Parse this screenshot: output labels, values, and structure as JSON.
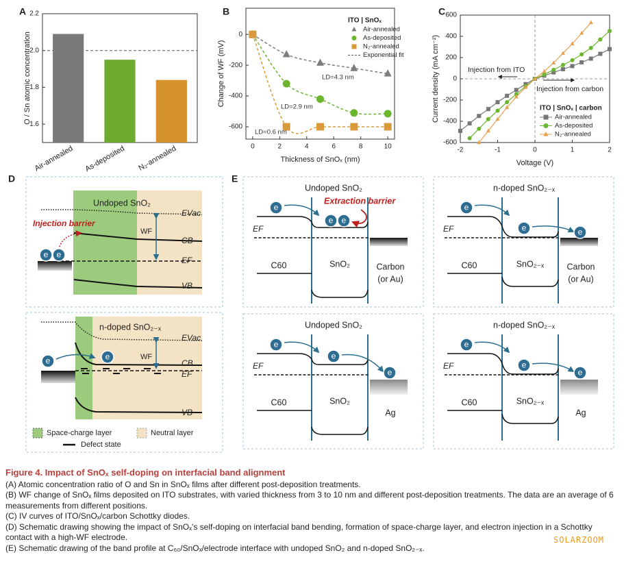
{
  "chart_data": [
    {
      "type": "bar",
      "label": "A",
      "ylabel": "O / Sn atomic concentration",
      "categories": [
        "Air-annealed",
        "As-deposited",
        "N₂-annealed"
      ],
      "values": [
        2.09,
        1.95,
        1.84
      ],
      "colors": [
        "#7a7a7a",
        "#6cab2e",
        "#d6922c"
      ],
      "reference_line": 2.0,
      "ylim": [
        1.5,
        2.2
      ],
      "yticks": [
        1.6,
        1.8,
        {
          "value": 2,
          "label": "2.0"
        },
        2.2
      ]
    },
    {
      "type": "line",
      "label": "B",
      "xlabel": "Thickness of SnOₓ (nm)",
      "ylabel": "Change of WF (mV)",
      "x": [
        0,
        2.5,
        5,
        7.5,
        10
      ],
      "series": [
        {
          "name": "Air-annealed",
          "color": "#7d7d7d",
          "marker": "triangle",
          "values": [
            0,
            -130,
            -185,
            -220,
            -255
          ]
        },
        {
          "name": "As-deposited",
          "color": "#6cb52f",
          "marker": "circle",
          "values": [
            0,
            -320,
            -420,
            -510,
            -515
          ]
        },
        {
          "name": "N₂-annealed",
          "color": "#d99a3c",
          "marker": "square",
          "values": [
            0,
            -600,
            -600,
            -600,
            -600
          ]
        }
      ],
      "legend_title": "ITO | SnOₓ",
      "fit_label": "Exponential fit",
      "line_style": "dashed",
      "legend": "upper right",
      "annotations": [
        "LD=4.3 nm",
        "LD=2.9 nm",
        "LD=0.6 nm"
      ],
      "xlim": [
        -0.5,
        10.5
      ],
      "xticks": [
        0,
        2,
        4,
        6,
        8,
        10
      ],
      "ylim": [
        -680,
        170
      ],
      "yticks": [
        -600,
        -400,
        -200,
        0
      ]
    },
    {
      "type": "line",
      "label": "C",
      "xlabel": "Voltage (V)",
      "ylabel": "Current density (mA cm⁻²)",
      "x": [
        -2,
        -1.75,
        -1.5,
        -1.25,
        -1,
        -0.75,
        -0.5,
        -0.25,
        0,
        0.25,
        0.5,
        0.75,
        1,
        1.25,
        1.5,
        1.75,
        2
      ],
      "series": [
        {
          "name": "Air-annealed",
          "color": "#777777",
          "marker": "square",
          "values": [
            -490,
            -420,
            -350,
            -285,
            -220,
            -160,
            -105,
            -50,
            0,
            30,
            60,
            90,
            120,
            155,
            190,
            235,
            280
          ]
        },
        {
          "name": "As-deposited",
          "color": "#6cb52f",
          "marker": "circle",
          "values": [
            null,
            -560,
            -470,
            -380,
            -300,
            -220,
            -145,
            -70,
            0,
            40,
            85,
            130,
            175,
            230,
            290,
            370,
            450
          ]
        },
        {
          "name": "N₂-annealed",
          "color": "#e8a050",
          "marker": "triangle",
          "values": [
            null,
            null,
            -600,
            -490,
            -380,
            -270,
            -170,
            -80,
            0,
            70,
            150,
            240,
            330,
            430,
            530,
            null,
            null
          ]
        }
      ],
      "legend_title": "ITO | SnOₓ | carbon",
      "line_style": "solid",
      "legend": "lower right",
      "zero_lines": true,
      "annotations": [
        "Injection from ITO",
        "Injection from carbon"
      ],
      "xlim": [
        -2,
        2
      ],
      "xticks": [
        -2,
        -1,
        0,
        1,
        2
      ],
      "ylim": [
        -600,
        600
      ],
      "yticks": [
        -600,
        -400,
        -200,
        0,
        200,
        400,
        600
      ]
    }
  ],
  "electron_label": "e",
  "panel_D": {
    "label": "D",
    "top": {
      "title": "Undoped SnO₂",
      "barrier": "Injection barrier"
    },
    "bottom": {
      "title": "n-doped SnO₂₋ₓ"
    },
    "levels": {
      "vac": "EVac",
      "cb": "CB",
      "ef": "EF",
      "vb": "VB",
      "wf": "WF"
    },
    "legend": [
      "Space-charge layer",
      "Neutral layer",
      "Defect state"
    ]
  },
  "panel_E": {
    "label": "E",
    "fermi": "EF",
    "panels": [
      {
        "title": "Undoped SnO₂",
        "left": "C60",
        "middle": "SnO₂",
        "right": [
          "Carbon",
          "(or Au)"
        ],
        "barrier": "Extraction barrier"
      },
      {
        "title": "n-doped SnO₂₋ₓ",
        "left": "C60",
        "middle": "SnO₂₋ₓ",
        "right": [
          "Carbon",
          "(or Au)"
        ]
      },
      {
        "title": "Undoped SnO₂",
        "left": "C60",
        "middle": "SnO₂",
        "right": [
          "Ag"
        ]
      },
      {
        "title": "n-doped SnO₂₋ₓ",
        "left": "C60",
        "middle": "SnO₂₋ₓ",
        "right": [
          "Ag"
        ]
      }
    ]
  },
  "caption": {
    "title": "Figure 4. Impact of SnOₓ self-doping on interfacial band alignment",
    "items": [
      "(A) Atomic concentration ratio of O and Sn in SnOₓ films after different post-deposition treatments.",
      "(B) WF change of SnOₓ films deposited on ITO substrates, with varied thickness from 3 to 10 nm and different post-deposition treatments. The data are an average of 6 measurements from different positions.",
      "(C) IV curves of ITO/SnOₓ/carbon Schottky diodes.",
      "(D) Schematic drawing showing the impact of SnOₓ's self-doping on interfacial band bending, formation of space-charge layer, and electron injection in a Schottky contact with a high-WF electrode.",
      "(E) Schematic drawing of the band profile at C₆₀/SnOₓ/electrode interface with undoped SnO₂ and n-doped SnO₂₋ₓ."
    ]
  },
  "watermark": "SOLARZOOM"
}
